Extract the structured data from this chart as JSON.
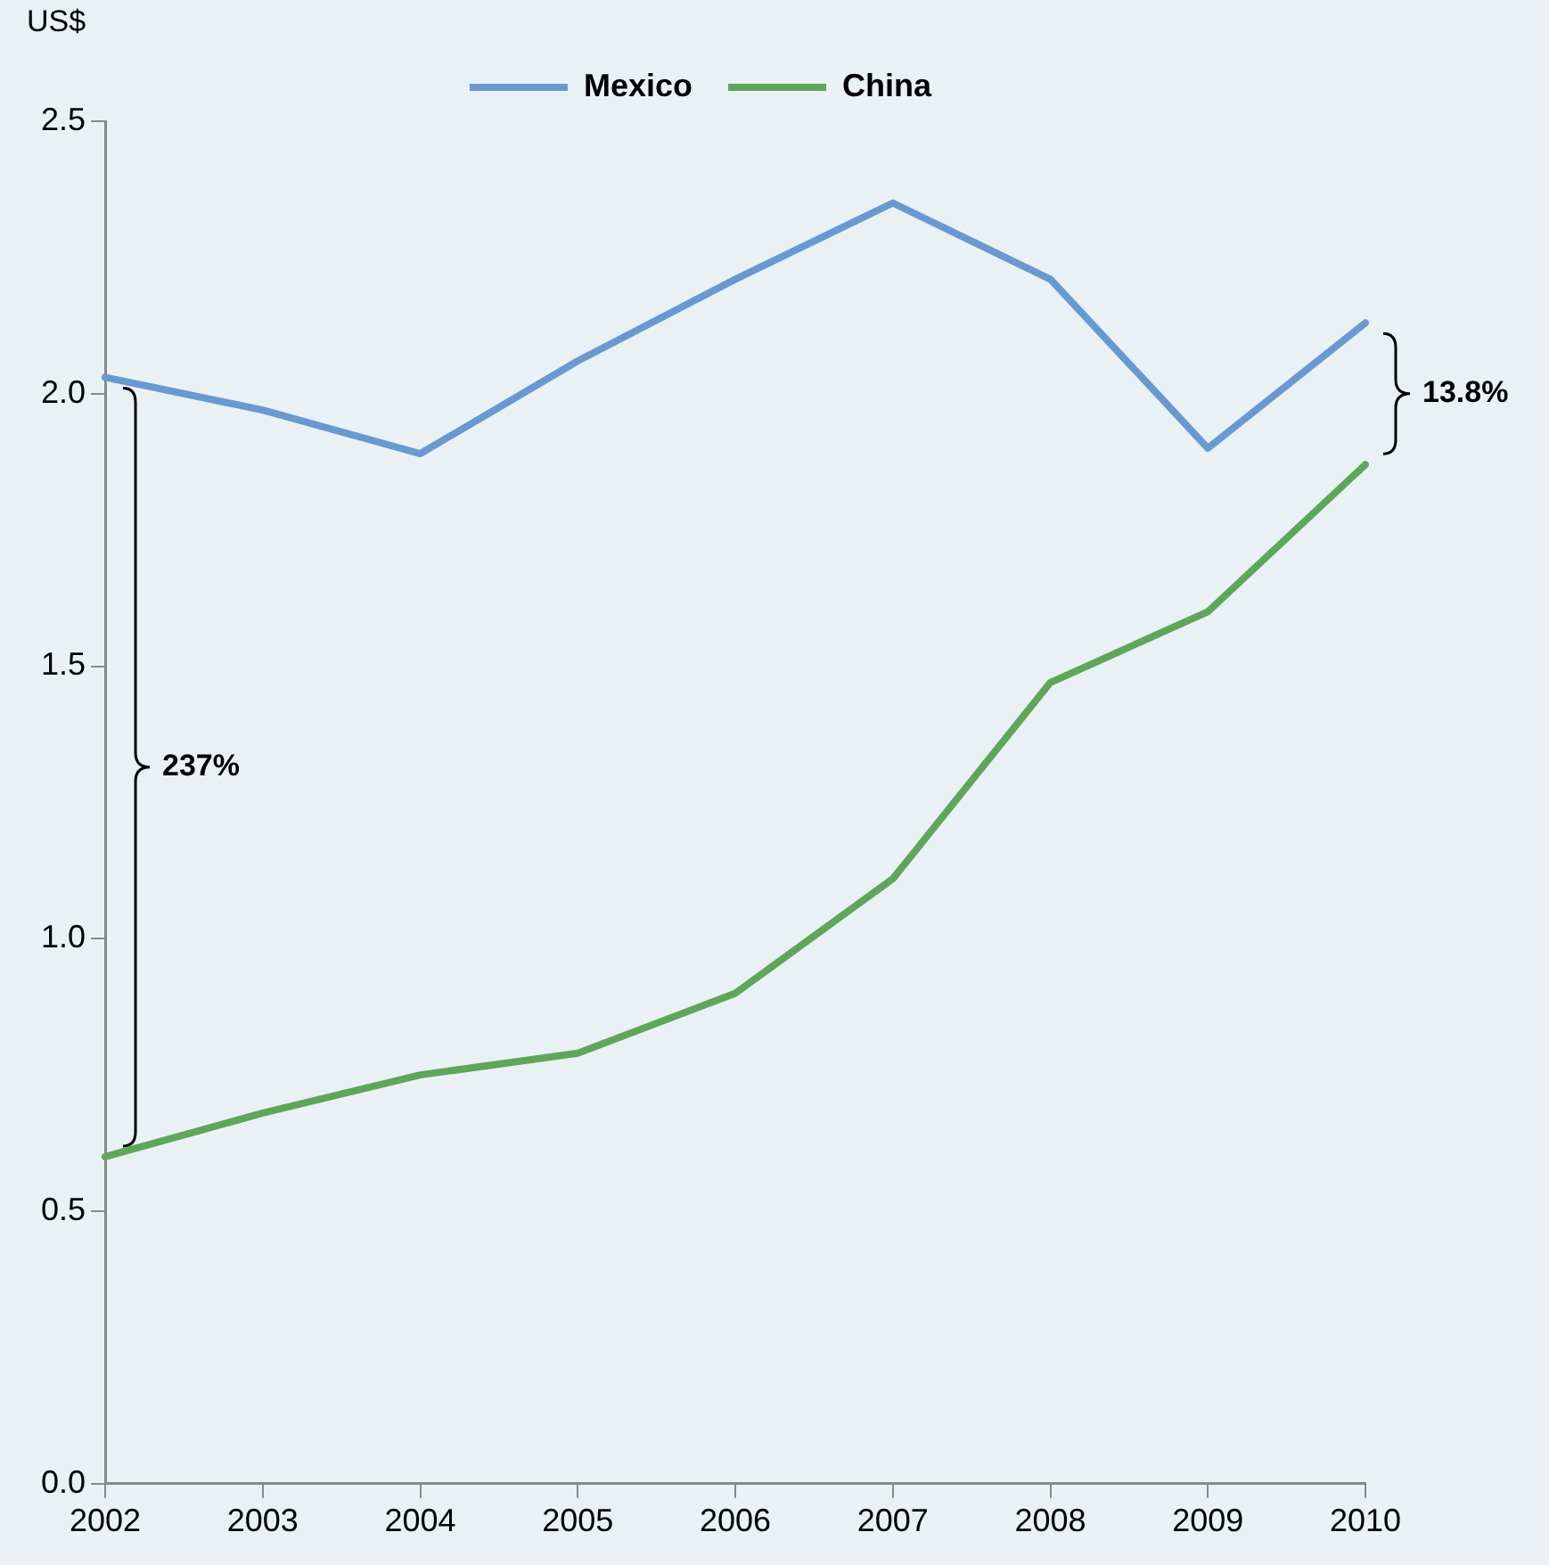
{
  "chart_data": {
    "type": "line",
    "ylabel": "US$",
    "categories": [
      "2002",
      "2003",
      "2004",
      "2005",
      "2006",
      "2007",
      "2008",
      "2009",
      "2010"
    ],
    "series": [
      {
        "name": "Mexico",
        "color": "#6a98d0",
        "values": [
          2.03,
          1.97,
          1.89,
          2.06,
          2.21,
          2.35,
          2.21,
          1.9,
          2.13
        ]
      },
      {
        "name": "China",
        "color": "#5fa55a",
        "values": [
          0.6,
          0.68,
          0.75,
          0.79,
          0.9,
          1.11,
          1.47,
          1.6,
          1.87
        ]
      }
    ],
    "ylim": [
      0,
      2.5
    ],
    "yticks": [
      {
        "value": 0,
        "label": "0.0"
      },
      {
        "value": 0.5,
        "label": "0.5"
      },
      {
        "value": 1,
        "label": "1.0"
      },
      {
        "value": 1.5,
        "label": "1.5"
      },
      {
        "value": 2,
        "label": "2.0"
      },
      {
        "value": 2.5,
        "label": "2.5"
      }
    ],
    "grid": false,
    "legend": "top",
    "marker": "none",
    "line_style": "solid",
    "annotations": [
      "237%",
      "13.8%"
    ]
  }
}
